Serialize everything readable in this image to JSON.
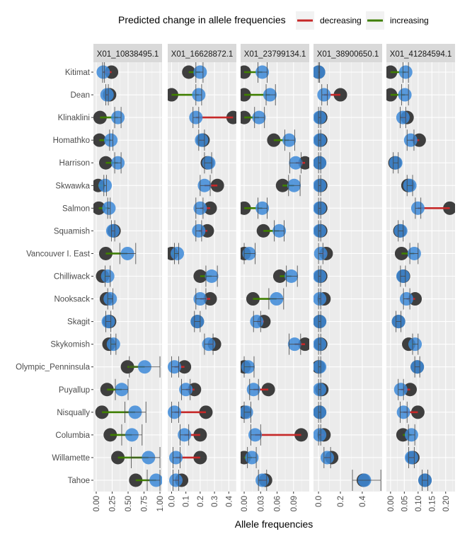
{
  "chart_data": {
    "type": "dumbbell",
    "xlabel": "Allele frequencies",
    "legend": {
      "title": "Predicted change in allele frequencies",
      "placement": "top",
      "entries": [
        {
          "label": "decreasing",
          "color": "#c62828"
        },
        {
          "label": "increasing",
          "color": "#3f7f00"
        }
      ]
    },
    "colors": {
      "black_point": "#262626",
      "blue_point": "#3d8ad8",
      "panel_bg": "#ebebeb",
      "strip_bg": "#d9d9d9"
    },
    "grid": true,
    "categories": [
      "Kitimat",
      "Dean",
      "Klinaklini",
      "Homathko",
      "Harrison",
      "Skwawka",
      "Salmon",
      "Squamish",
      "Vancouver I. East",
      "Chilliwack",
      "Nooksack",
      "Skagit",
      "Skykomish",
      "Olympic_Penninsula",
      "Puyallup",
      "Nisqually",
      "Columbia",
      "Willamette",
      "Tahoe"
    ],
    "panels": [
      {
        "title": "X01_10838495.1",
        "xlim": [
          -0.044,
          1.033
        ],
        "ticks": [
          0,
          0.25,
          0.5,
          0.75,
          1.0
        ],
        "tick_labels": [
          "0.00",
          "0.25",
          "0.50",
          "0.75",
          "1.00"
        ],
        "black_point": [
          0.24,
          0.21,
          0.06,
          0.05,
          0.15,
          0.03,
          0.04,
          0.28,
          0.15,
          0.1,
          0.16,
          0.21,
          0.2,
          0.49,
          0.17,
          0.09,
          0.22,
          0.34,
          0.62
        ],
        "blue_point": [
          0.11,
          0.17,
          0.34,
          0.23,
          0.34,
          0.14,
          0.2,
          0.26,
          0.49,
          0.18,
          0.22,
          0.19,
          0.27,
          0.76,
          0.4,
          0.61,
          0.56,
          0.82,
          0.94
        ],
        "ci_low": [
          0.1,
          0.15,
          0.29,
          0.21,
          0.29,
          0.12,
          0.18,
          0.24,
          0.37,
          0.14,
          0.18,
          0.15,
          0.23,
          0.52,
          0.3,
          0.45,
          0.4,
          0.55,
          0.8
        ],
        "ci_high": [
          0.13,
          0.19,
          0.39,
          0.26,
          0.39,
          0.16,
          0.22,
          0.29,
          0.62,
          0.22,
          0.26,
          0.23,
          0.31,
          1.0,
          0.5,
          0.78,
          0.72,
          1.0,
          1.0
        ]
      },
      {
        "title": "X01_16628872.1",
        "xlim": [
          -0.027,
          0.453
        ],
        "ticks": [
          0,
          0.1,
          0.2,
          0.3,
          0.4
        ],
        "tick_labels": [
          "0.0",
          "0.1",
          "0.2",
          "0.3",
          "0.4"
        ],
        "black_point": [
          0.12,
          0.0,
          0.43,
          0.22,
          0.25,
          0.32,
          0.27,
          0.25,
          0.0,
          0.2,
          0.27,
          0.18,
          0.3,
          0.09,
          0.16,
          0.24,
          0.2,
          0.2,
          0.07
        ],
        "blue_point": [
          0.2,
          0.19,
          0.17,
          0.21,
          0.26,
          0.23,
          0.2,
          0.19,
          0.04,
          0.28,
          0.2,
          0.18,
          0.26,
          0.02,
          0.1,
          0.02,
          0.09,
          0.03,
          0.03
        ],
        "ci_low": [
          0.17,
          0.17,
          0.15,
          0.19,
          0.23,
          0.2,
          0.17,
          0.17,
          0.02,
          0.24,
          0.17,
          0.16,
          0.23,
          0.0,
          0.07,
          0.0,
          0.06,
          0.01,
          0.01
        ],
        "ci_high": [
          0.22,
          0.21,
          0.19,
          0.23,
          0.28,
          0.27,
          0.22,
          0.21,
          0.05,
          0.32,
          0.24,
          0.2,
          0.29,
          0.05,
          0.13,
          0.05,
          0.12,
          0.06,
          0.05
        ]
      },
      {
        "title": "X01_23799134.1",
        "xlim": [
          -0.0065,
          0.1187
        ],
        "ticks": [
          0,
          0.03,
          0.06,
          0.09
        ],
        "tick_labels": [
          "0.00",
          "0.03",
          "0.06",
          "0.09"
        ],
        "black_point": [
          0.0,
          0.0,
          0.0,
          0.054,
          0.111,
          0.07,
          0.0,
          0.035,
          0.0,
          0.065,
          0.016,
          0.036,
          0.111,
          0.0,
          0.044,
          0.0,
          0.104,
          0.0,
          0.039
        ],
        "blue_point": [
          0.033,
          0.047,
          0.027,
          0.082,
          0.094,
          0.091,
          0.033,
          0.064,
          0.009,
          0.086,
          0.059,
          0.023,
          0.092,
          0.007,
          0.017,
          0.004,
          0.02,
          0.014,
          0.033
        ],
        "ci_low": [
          0.025,
          0.04,
          0.019,
          0.074,
          0.083,
          0.081,
          0.025,
          0.055,
          0.0,
          0.077,
          0.045,
          0.017,
          0.082,
          0.0,
          0.01,
          0.0,
          0.012,
          0.006,
          0.026
        ],
        "ci_high": [
          0.042,
          0.057,
          0.037,
          0.092,
          0.104,
          0.102,
          0.042,
          0.073,
          0.02,
          0.097,
          0.072,
          0.03,
          0.103,
          0.018,
          0.026,
          0.012,
          0.03,
          0.022,
          0.041
        ]
      },
      {
        "title": "X01_38900650.1",
        "xlim": [
          -0.046,
          0.582
        ],
        "ticks": [
          0,
          0.2,
          0.4
        ],
        "tick_labels": [
          "0.0",
          "0.2",
          "0.4"
        ],
        "black_point": [
          0.0,
          0.2,
          0.02,
          0.02,
          0.01,
          0.02,
          0.02,
          0.02,
          0.07,
          0.02,
          0.05,
          0.01,
          0.02,
          0.0,
          0.03,
          0.01,
          0.05,
          0.12,
          0.41
        ],
        "blue_point": [
          0.0,
          0.05,
          0.01,
          0.01,
          0.01,
          0.01,
          0.01,
          0.01,
          0.02,
          0.01,
          0.01,
          0.01,
          0.01,
          0.01,
          0.01,
          0.01,
          0.01,
          0.08,
          0.42
        ],
        "ci_low": [
          0.0,
          0.03,
          0.0,
          0.0,
          0.0,
          0.0,
          0.0,
          0.0,
          0.0,
          0.0,
          0.0,
          0.0,
          0.0,
          0.0,
          0.0,
          0.0,
          0.0,
          0.05,
          0.31
        ],
        "ci_high": [
          0.01,
          0.08,
          0.02,
          0.02,
          0.02,
          0.02,
          0.02,
          0.02,
          0.04,
          0.02,
          0.02,
          0.02,
          0.02,
          0.02,
          0.02,
          0.02,
          0.02,
          0.11,
          0.57
        ]
      },
      {
        "title": "X01_41284594.1",
        "xlim": [
          -0.015,
          0.234
        ],
        "ticks": [
          0,
          0.05,
          0.1,
          0.15,
          0.2
        ],
        "tick_labels": [
          "0.00",
          "0.05",
          "0.10",
          "0.15",
          "0.20"
        ],
        "black_point": [
          0.0,
          0.0,
          0.06,
          0.104,
          0.016,
          0.063,
          0.215,
          0.034,
          0.04,
          0.047,
          0.089,
          0.029,
          0.066,
          0.097,
          0.071,
          0.099,
          0.045,
          0.081,
          0.125
        ],
        "blue_point": [
          0.055,
          0.052,
          0.045,
          0.073,
          0.019,
          0.07,
          0.099,
          0.037,
          0.086,
          0.045,
          0.058,
          0.029,
          0.089,
          0.097,
          0.037,
          0.047,
          0.076,
          0.076,
          0.125
        ],
        "ci_low": [
          0.045,
          0.04,
          0.035,
          0.06,
          0.01,
          0.06,
          0.09,
          0.028,
          0.07,
          0.036,
          0.047,
          0.02,
          0.08,
          0.088,
          0.028,
          0.035,
          0.065,
          0.066,
          0.115
        ],
        "ci_high": [
          0.065,
          0.065,
          0.055,
          0.085,
          0.028,
          0.08,
          0.11,
          0.046,
          0.1,
          0.054,
          0.07,
          0.038,
          0.1,
          0.106,
          0.047,
          0.06,
          0.088,
          0.086,
          0.135
        ]
      }
    ]
  }
}
